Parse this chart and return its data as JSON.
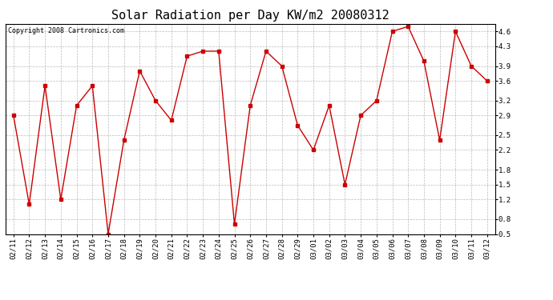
{
  "title": "Solar Radiation per Day KW/m2 20080312",
  "copyright": "Copyright 2008 Cartronics.com",
  "dates": [
    "02/11",
    "02/12",
    "02/13",
    "02/14",
    "02/15",
    "02/16",
    "02/17",
    "02/18",
    "02/19",
    "02/20",
    "02/21",
    "02/22",
    "02/23",
    "02/24",
    "02/25",
    "02/26",
    "02/27",
    "02/28",
    "02/29",
    "03/01",
    "03/02",
    "03/03",
    "03/04",
    "03/05",
    "03/06",
    "03/07",
    "03/08",
    "03/09",
    "03/10",
    "03/11",
    "03/12"
  ],
  "values": [
    2.9,
    1.1,
    3.5,
    1.2,
    3.1,
    3.5,
    0.5,
    2.4,
    3.8,
    3.2,
    2.8,
    4.1,
    4.2,
    4.2,
    0.7,
    3.1,
    4.2,
    3.9,
    2.7,
    2.2,
    3.1,
    1.5,
    2.9,
    3.2,
    4.6,
    4.7,
    4.0,
    2.4,
    4.6,
    3.9,
    3.6
  ],
  "line_color": "#cc0000",
  "marker": "s",
  "marker_size": 2.5,
  "background_color": "#ffffff",
  "plot_bg_color": "#ffffff",
  "grid_color": "#aaaaaa",
  "ylim": [
    0.5,
    4.75
  ],
  "yticks": [
    0.5,
    0.8,
    1.2,
    1.5,
    1.8,
    2.2,
    2.5,
    2.9,
    3.2,
    3.6,
    3.9,
    4.3,
    4.6
  ],
  "title_fontsize": 11,
  "tick_fontsize": 6.5,
  "copyright_fontsize": 6
}
